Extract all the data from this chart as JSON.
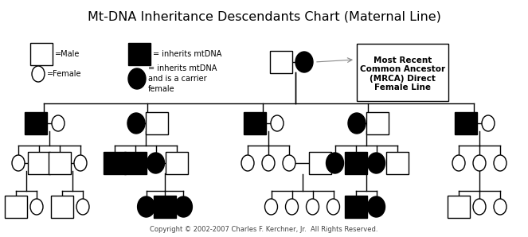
{
  "title": "Mt-DNA Inheritance Descendants Chart (Maternal Line)",
  "title_fontsize": 11.5,
  "copyright": "Copyright © 2002-2007 Charles F. Kerchner, Jr.  All Rights Reserved.",
  "copyright_fontsize": 6,
  "annotation_box": "Most Recent\nCommon Ancestor\n(MRCA) Direct\nFemale Line",
  "bg_color": "#ffffff",
  "lw": 1.0,
  "sq": 0.028,
  "cr": 0.03,
  "cr_filled": 0.036
}
